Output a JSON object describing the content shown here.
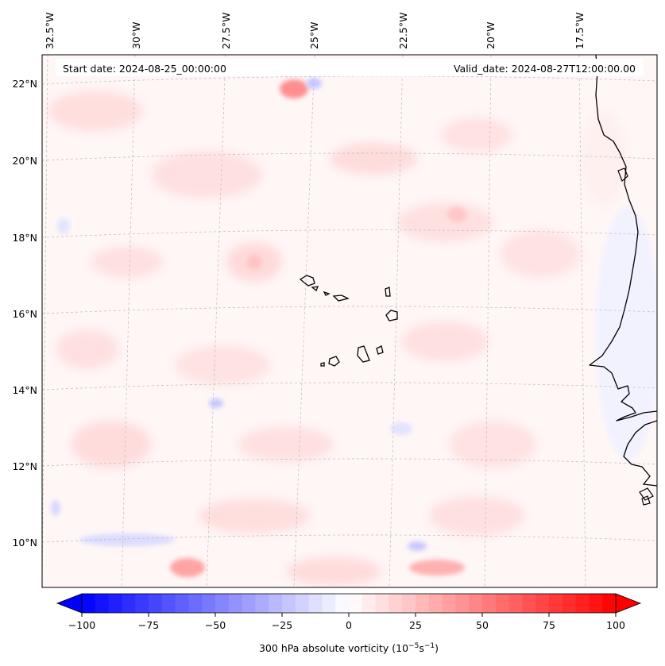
{
  "header": {
    "start_date": "Start date: 2024-08-25_00:00:00",
    "valid_date": "Valid_date: 2024-08-27T12:00:00.00"
  },
  "axes": {
    "lon_labels": [
      "32.5°W",
      "30°W",
      "27.5°W",
      "25°W",
      "22.5°W",
      "20°W",
      "17.5°W"
    ],
    "lat_labels": [
      "22°N",
      "20°N",
      "18°N",
      "16°N",
      "14°N",
      "12°N",
      "10°N"
    ]
  },
  "colorbar": {
    "ticks": [
      "−100",
      "−75",
      "−50",
      "−25",
      "0",
      "25",
      "50",
      "75",
      "100"
    ],
    "label_main": "300 hPa absolute vorticity (10",
    "label_sup1": "−5",
    "label_mid": "s",
    "label_sup2": "−1",
    "label_end": ")",
    "min": -100,
    "max": 100,
    "colormap": "bwr",
    "low_color": "#0000ff",
    "mid_color": "#ffffff",
    "high_color": "#ff0000"
  },
  "map": {
    "coastline_color": "#000000",
    "grid_color": "#bbbbbb"
  }
}
